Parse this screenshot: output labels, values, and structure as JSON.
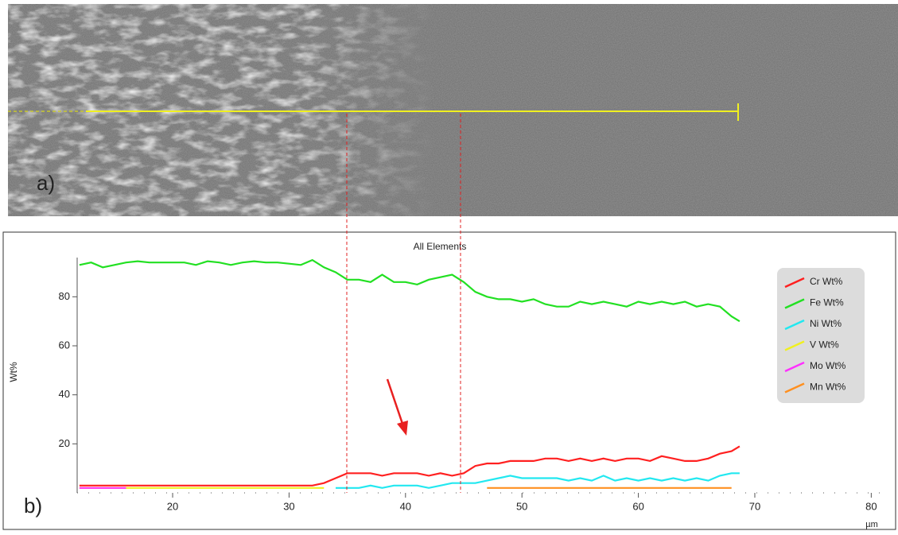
{
  "panel_a_label": "a)",
  "panel_b_label": "b)",
  "chart_data": {
    "type": "line",
    "title": "All Elements",
    "x_label": "µm",
    "y_label": "Wt%",
    "x": [
      12,
      13,
      14,
      15,
      16,
      17,
      18,
      19,
      20,
      21,
      22,
      23,
      24,
      25,
      26,
      27,
      28,
      29,
      30,
      31,
      32,
      33,
      34,
      35,
      36,
      37,
      38,
      39,
      40,
      41,
      42,
      43,
      44,
      45,
      46,
      47,
      48,
      49,
      50,
      51,
      52,
      53,
      54,
      55,
      56,
      57,
      58,
      59,
      60,
      61,
      62,
      63,
      64,
      65,
      66,
      67,
      68,
      68.7
    ],
    "series": [
      {
        "name": "Cr Wt%",
        "color": "#ff2020",
        "values": [
          3,
          3,
          3,
          3,
          3,
          3,
          3,
          3,
          3,
          3,
          3,
          3,
          3,
          3,
          3,
          3,
          3,
          3,
          3,
          3,
          3,
          4,
          6,
          8,
          8,
          8,
          7,
          8,
          8,
          8,
          7,
          8,
          7,
          8,
          11,
          12,
          12,
          13,
          13,
          13,
          14,
          14,
          13,
          14,
          13,
          14,
          13,
          14,
          14,
          13,
          15,
          14,
          13,
          13,
          14,
          16,
          17,
          19
        ]
      },
      {
        "name": "Fe Wt%",
        "color": "#22e022",
        "values": [
          93,
          94,
          92,
          93,
          94,
          94.5,
          94,
          94,
          94,
          94,
          93,
          94.5,
          94,
          93,
          94,
          94.5,
          94,
          94,
          93.5,
          93,
          95,
          92,
          90,
          87,
          87,
          86,
          89,
          86,
          86,
          85,
          87,
          88,
          89,
          86,
          82,
          80,
          79,
          79,
          78,
          79,
          77,
          76,
          76,
          78,
          77,
          78,
          77,
          76,
          78,
          77,
          78,
          77,
          78,
          76,
          77,
          76,
          72,
          70
        ]
      },
      {
        "name": "Ni Wt%",
        "color": "#22e8f0",
        "values": [
          null,
          null,
          null,
          null,
          null,
          null,
          null,
          null,
          null,
          null,
          null,
          null,
          null,
          null,
          null,
          null,
          null,
          null,
          null,
          null,
          null,
          null,
          2,
          2,
          2,
          3,
          2,
          3,
          3,
          3,
          2,
          3,
          4,
          4,
          4,
          5,
          6,
          7,
          6,
          6,
          6,
          6,
          5,
          6,
          5,
          7,
          5,
          6,
          5,
          6,
          5,
          6,
          5,
          6,
          5,
          7,
          8,
          8
        ]
      },
      {
        "name": "V Wt%",
        "color": "#f0f020",
        "values": [
          2,
          2,
          2,
          2,
          2,
          2,
          2,
          2,
          2,
          2,
          2,
          2,
          2,
          2,
          2,
          2,
          2,
          2,
          2,
          2,
          2,
          2,
          null,
          null,
          null,
          null,
          null,
          null,
          null,
          null,
          null,
          null,
          null,
          null,
          null,
          null,
          null,
          null,
          null,
          null,
          null,
          null,
          null,
          null,
          null,
          null,
          null,
          null,
          null,
          null,
          null,
          null,
          null,
          null,
          null,
          null,
          null,
          null
        ]
      },
      {
        "name": "Mo Wt%",
        "color": "#ff30ff",
        "values": [
          2,
          2,
          2,
          2,
          2,
          null,
          null,
          null,
          null,
          null,
          null,
          null,
          null,
          null,
          null,
          null,
          null,
          null,
          null,
          null,
          null,
          null,
          null,
          null,
          null,
          null,
          null,
          null,
          null,
          null,
          null,
          null,
          null,
          null,
          null,
          null,
          null,
          null,
          null,
          null,
          null,
          null,
          null,
          null,
          null,
          null,
          null,
          null,
          null,
          null,
          null,
          null,
          null,
          null,
          null,
          null,
          null,
          null
        ]
      },
      {
        "name": "Mn Wt%",
        "color": "#ff9020",
        "values": [
          null,
          null,
          null,
          null,
          null,
          null,
          null,
          null,
          null,
          null,
          null,
          null,
          null,
          null,
          null,
          null,
          null,
          null,
          null,
          null,
          null,
          null,
          null,
          null,
          null,
          null,
          null,
          null,
          null,
          null,
          null,
          null,
          null,
          null,
          null,
          2,
          2,
          2,
          2,
          2,
          2,
          2,
          2,
          2,
          2,
          2,
          2,
          2,
          2,
          2,
          2,
          2,
          2,
          2,
          2,
          2,
          2,
          null
        ]
      }
    ],
    "xlim": [
      11.8,
      81
    ],
    "xticks": [
      20,
      30,
      40,
      50,
      60,
      70,
      80
    ],
    "ylim": [
      0,
      96
    ],
    "yticks": [
      20,
      40,
      60,
      80
    ],
    "grid": false,
    "legend": "upper right"
  }
}
